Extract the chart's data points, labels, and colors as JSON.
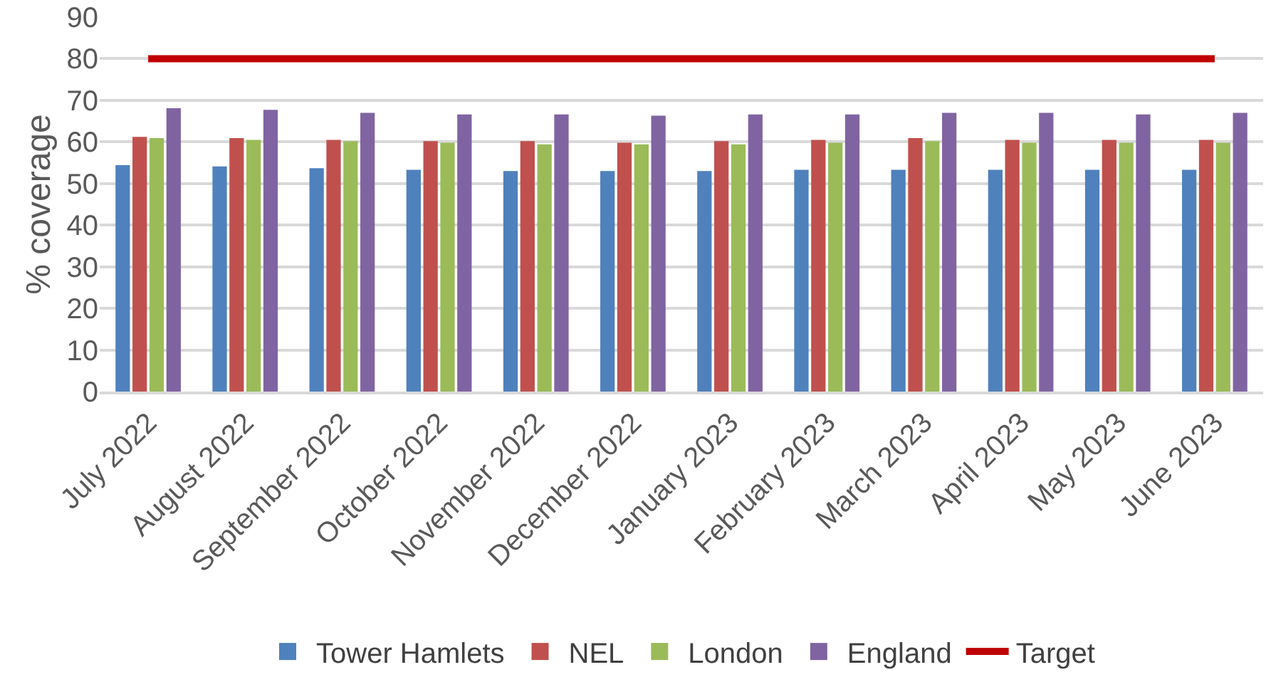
{
  "chart_data": {
    "type": "bar",
    "ylabel": "% coverage",
    "categories": [
      "July 2022",
      "August 2022",
      "September 2022",
      "October 2022",
      "November 2022",
      "December 2022",
      "January 2023",
      "February 2023",
      "March 2023",
      "April 2023",
      "May 2023",
      "June 2023"
    ],
    "series": [
      {
        "name": "Tower Hamlets",
        "color": "#4f81bd",
        "values": [
          54.4,
          54.1,
          53.7,
          53.3,
          53.0,
          53.0,
          53.0,
          53.3,
          53.3,
          53.3,
          53.3,
          53.3
        ]
      },
      {
        "name": "NEL",
        "color": "#c0504d",
        "values": [
          61.2,
          60.9,
          60.5,
          60.2,
          60.2,
          59.8,
          60.2,
          60.5,
          60.9,
          60.5,
          60.5,
          60.5
        ]
      },
      {
        "name": "London",
        "color": "#9bbb59",
        "values": [
          60.9,
          60.5,
          60.2,
          59.8,
          59.4,
          59.4,
          59.4,
          59.8,
          60.2,
          59.8,
          59.8,
          59.8
        ]
      },
      {
        "name": "England",
        "color": "#8064a2",
        "values": [
          68.1,
          67.7,
          67.0,
          66.6,
          66.6,
          66.3,
          66.6,
          66.6,
          67.0,
          67.0,
          66.6,
          67.0
        ]
      },
      {
        "name": "Target",
        "color": "#c00000",
        "type": "line",
        "marker": "none",
        "values": [
          80,
          80,
          80,
          80,
          80,
          80,
          80,
          80,
          80,
          80,
          80,
          80
        ]
      }
    ],
    "ylim": [
      0,
      90
    ],
    "yticks": [
      0,
      10,
      20,
      30,
      40,
      50,
      60,
      70,
      80,
      90
    ],
    "grid": "y",
    "legend": "bottom"
  }
}
